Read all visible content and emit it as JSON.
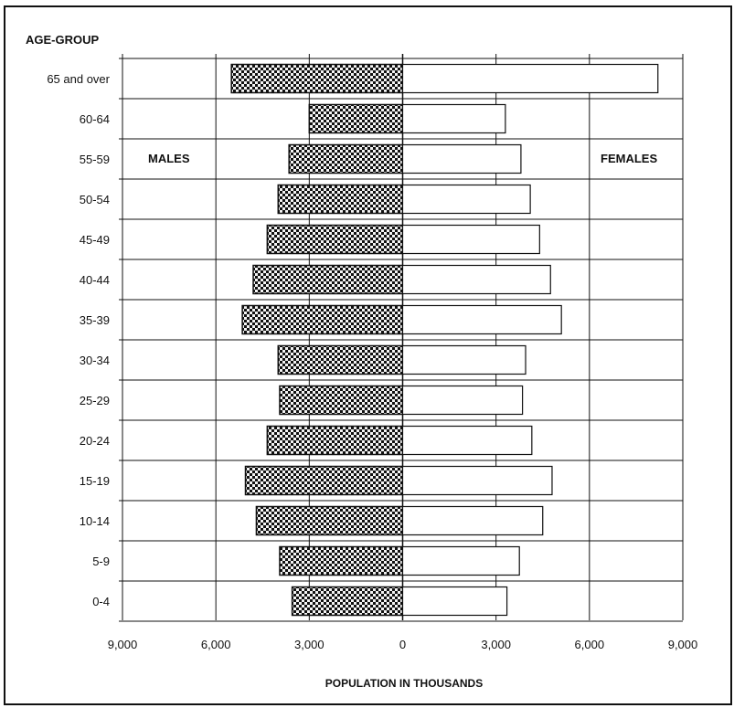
{
  "chart_data": {
    "type": "bar",
    "orientation": "horizontal-population-pyramid",
    "y_title": "AGE-GROUP",
    "xlabel": "POPULATION IN THOUSANDS",
    "left_label": "MALES",
    "right_label": "FEMALES",
    "categories": [
      "65 and over",
      "60-64",
      "55-59",
      "50-54",
      "45-49",
      "40-44",
      "35-39",
      "30-34",
      "25-29",
      "20-24",
      "15-19",
      "10-14",
      "5-9",
      "0-4"
    ],
    "series": [
      {
        "name": "MALES",
        "values": [
          5500,
          3000,
          3650,
          4000,
          4350,
          4800,
          5150,
          4000,
          3950,
          4350,
          5050,
          4700,
          3950,
          3550
        ]
      },
      {
        "name": "FEMALES",
        "values": [
          8200,
          3300,
          3800,
          4100,
          4400,
          4750,
          5100,
          3950,
          3850,
          4150,
          4800,
          4500,
          3750,
          3350
        ]
      }
    ],
    "xlim": [
      -9000,
      9000
    ],
    "x_ticks": [
      -9000,
      -6000,
      -3000,
      0,
      3000,
      6000,
      9000
    ],
    "x_tick_labels": [
      "9,000",
      "6,000",
      "3,000",
      "0",
      "3,000",
      "6,000",
      "9,000"
    ],
    "grid": true,
    "colors": {
      "males_fill": "#111111",
      "males_pattern": "checkered",
      "females_fill": "#ffffff",
      "grid": "#111111"
    }
  }
}
